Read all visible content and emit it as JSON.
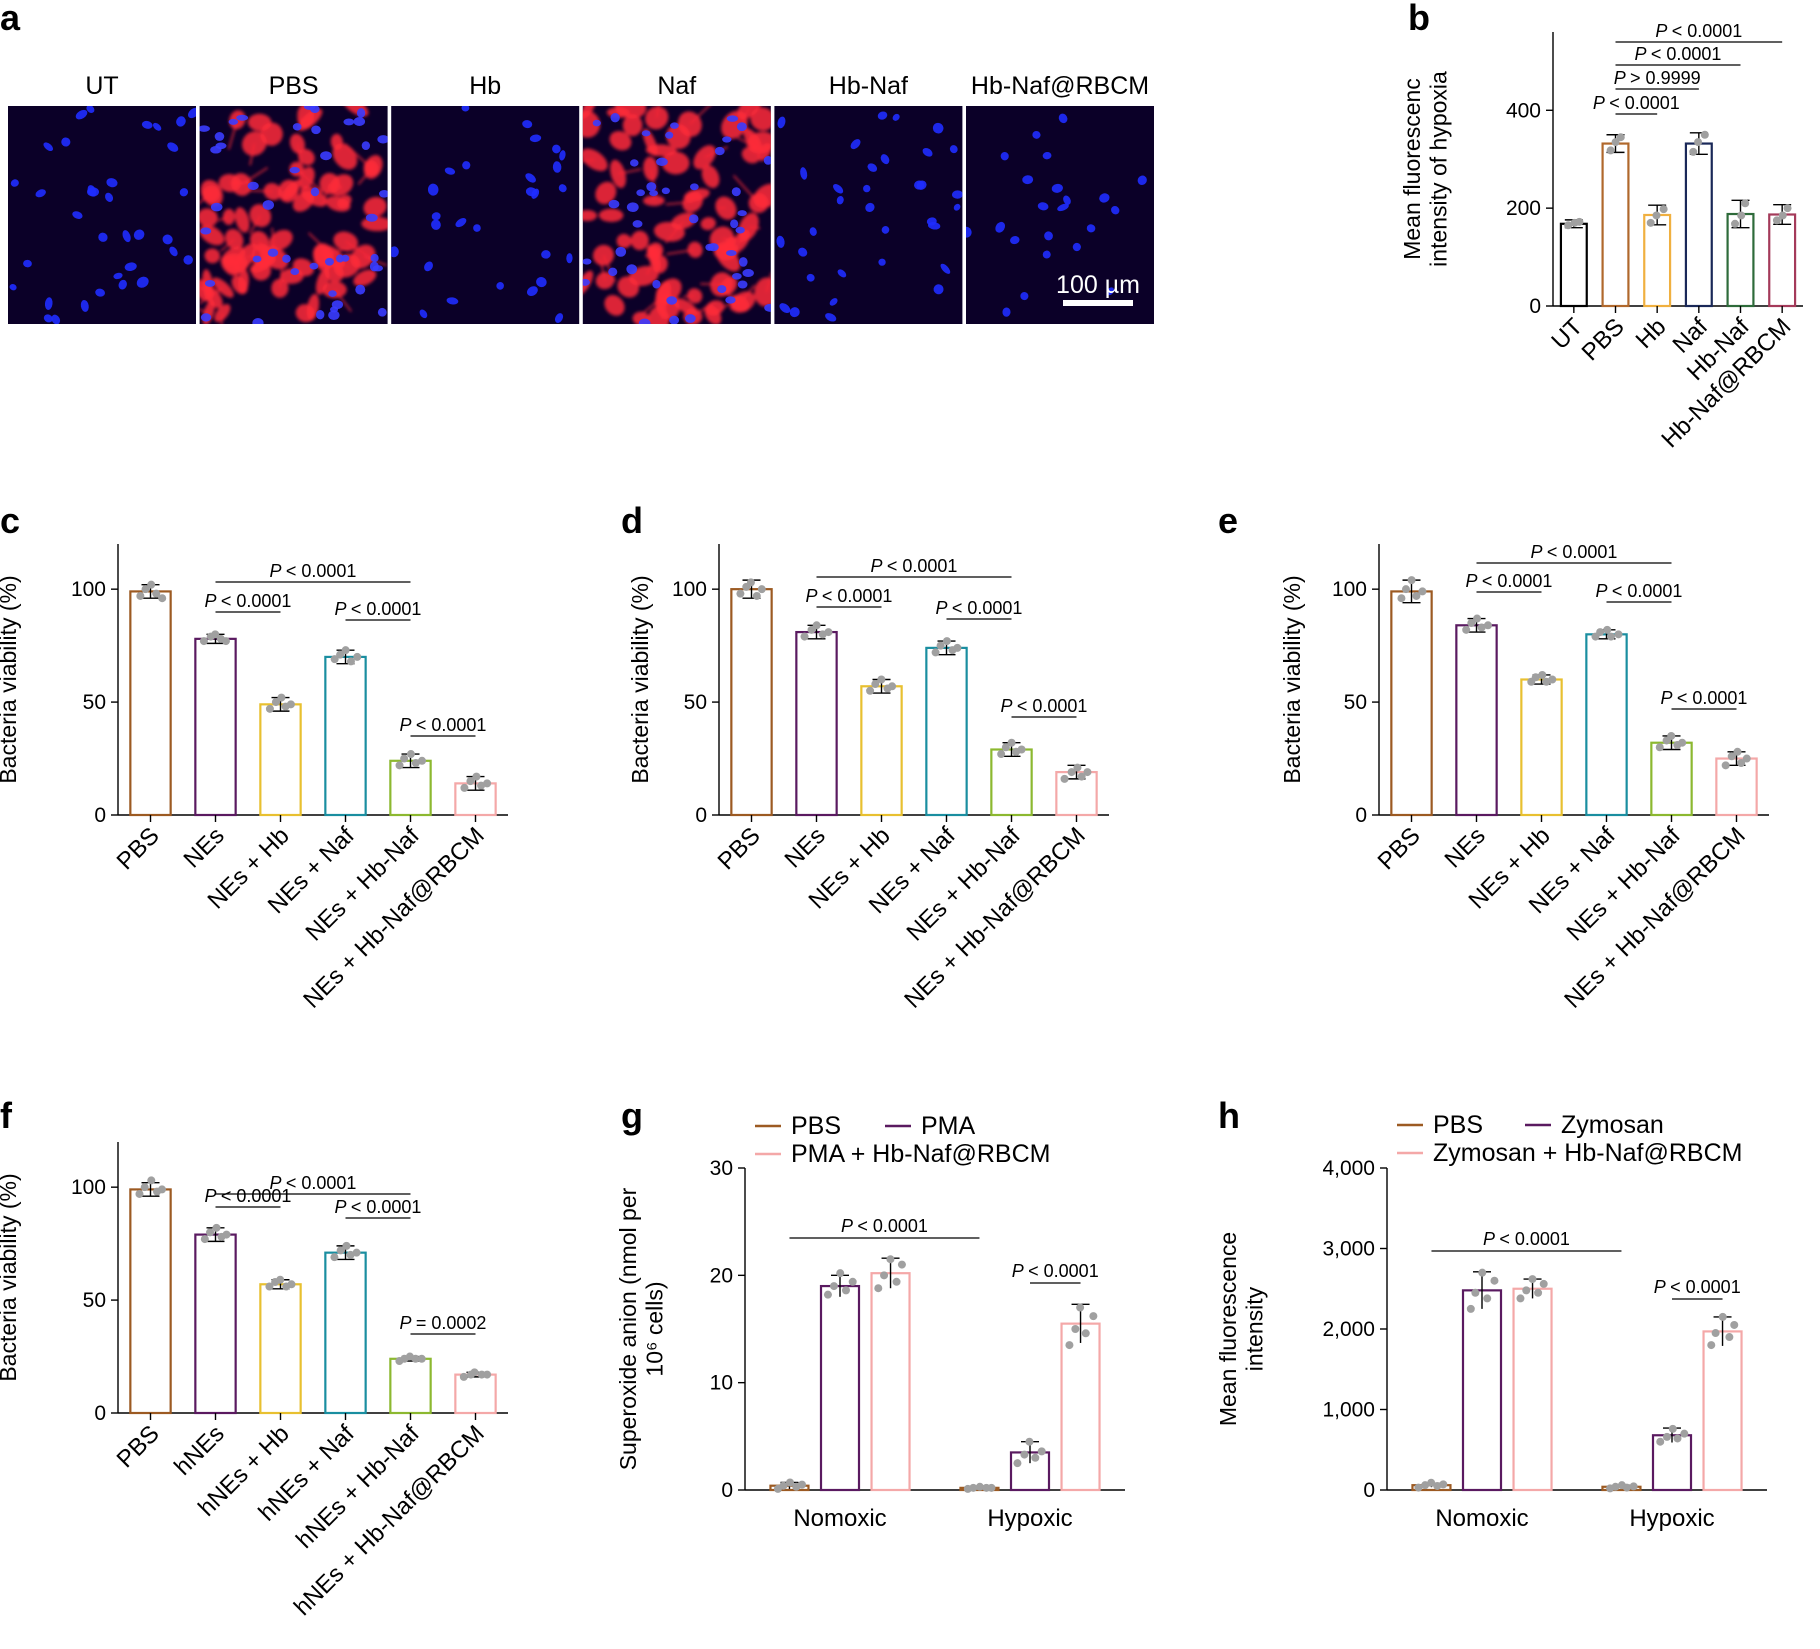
{
  "panel_labels": [
    "a",
    "b",
    "c",
    "d",
    "e",
    "f",
    "g",
    "h"
  ],
  "micrographs": {
    "labels": [
      "UT",
      "PBS",
      "Hb",
      "Naf",
      "Hb-Naf",
      "Hb-Naf@RBCM"
    ],
    "red_signal": [
      false,
      true,
      false,
      true,
      false,
      false
    ],
    "scale_bar": "100 µm",
    "colors": {
      "background": "#0b0028",
      "nuclei": "#1f2cff",
      "hypoxia": "#ff2a3a"
    }
  },
  "chart_data": [
    {
      "id": "b",
      "type": "bar",
      "categories": [
        "UT",
        "PBS",
        "Hb",
        "Naf",
        "Hb-Naf",
        "Hb-Naf@RBCM"
      ],
      "values": [
        168,
        332,
        186,
        332,
        188,
        187
      ],
      "errors": [
        8,
        18,
        20,
        22,
        28,
        20
      ],
      "points": [
        [
          165,
          170,
          172
        ],
        [
          318,
          335,
          345
        ],
        [
          170,
          185,
          198
        ],
        [
          315,
          335,
          350
        ],
        [
          168,
          185,
          210
        ],
        [
          175,
          185,
          200
        ]
      ],
      "colors": [
        "#000000",
        "#b0682c",
        "#f0b040",
        "#1a2858",
        "#2e6b3a",
        "#a43a5a"
      ],
      "ylabel": "Mean fluorescenc intensity of hypoxia",
      "ylim": [
        0,
        560
      ],
      "yticks": [
        0,
        200,
        400
      ],
      "stats": [
        {
          "from": 1,
          "to": 2,
          "text": "< 0.0001"
        },
        {
          "from": 1,
          "to": 3,
          "text": "> 0.9999"
        },
        {
          "from": 1,
          "to": 4,
          "text": "< 0.0001"
        },
        {
          "from": 1,
          "to": 5,
          "text": "< 0.0001"
        }
      ]
    },
    {
      "id": "c",
      "type": "bar",
      "categories": [
        "PBS",
        "NEs",
        "NEs + Hb",
        "NEs + Naf",
        "NEs + Hb-Naf",
        "NEs + Hb-Naf@RBCM"
      ],
      "values": [
        99,
        78,
        49,
        70,
        24,
        14
      ],
      "errors": [
        3,
        2,
        3,
        3,
        3,
        3
      ],
      "points": [
        [
          97,
          100,
          102,
          98,
          96
        ],
        [
          77,
          79,
          80,
          78,
          77
        ],
        [
          47,
          50,
          52,
          48,
          49
        ],
        [
          69,
          71,
          73,
          68,
          70
        ],
        [
          22,
          25,
          27,
          23,
          24
        ],
        [
          12,
          15,
          17,
          13,
          14
        ]
      ],
      "colors": [
        "#9c5a22",
        "#5a1a60",
        "#e8c030",
        "#1a8ea0",
        "#8cb830",
        "#f4a8a8"
      ],
      "ylabel": "Bacteria viability (%)",
      "ylim": [
        0,
        120
      ],
      "yticks": [
        0,
        50,
        100
      ],
      "stats": [
        {
          "from": 1,
          "to": 2,
          "text": "< 0.0001"
        },
        {
          "from": 1,
          "to": 4,
          "text": "< 0.0001"
        },
        {
          "from": 3,
          "to": 4,
          "text": "< 0.0001"
        },
        {
          "from": 4,
          "to": 5,
          "text": "< 0.0001"
        }
      ]
    },
    {
      "id": "d",
      "type": "bar",
      "categories": [
        "PBS",
        "NEs",
        "NEs + Hb",
        "NEs + Naf",
        "NEs + Hb-Naf",
        "NEs + Hb-Naf@RBCM"
      ],
      "values": [
        100,
        81,
        57,
        74,
        29,
        19
      ],
      "errors": [
        4,
        3,
        3,
        3,
        3,
        3
      ],
      "points": [
        [
          98,
          101,
          103,
          97,
          100
        ],
        [
          79,
          82,
          84,
          80,
          81
        ],
        [
          55,
          58,
          60,
          56,
          57
        ],
        [
          72,
          75,
          77,
          73,
          74
        ],
        [
          27,
          30,
          32,
          28,
          29
        ],
        [
          16,
          19,
          21,
          17,
          19
        ]
      ],
      "colors": [
        "#9c5a22",
        "#5a1a60",
        "#e8c030",
        "#1a8ea0",
        "#8cb830",
        "#f4a8a8"
      ],
      "ylabel": "Bacteria viability (%)",
      "ylim": [
        0,
        120
      ],
      "yticks": [
        0,
        50,
        100
      ],
      "stats": [
        {
          "from": 1,
          "to": 2,
          "text": "< 0.0001"
        },
        {
          "from": 1,
          "to": 4,
          "text": "< 0.0001"
        },
        {
          "from": 3,
          "to": 4,
          "text": "< 0.0001"
        },
        {
          "from": 4,
          "to": 5,
          "text": "< 0.0001"
        }
      ]
    },
    {
      "id": "e",
      "type": "bar",
      "categories": [
        "PBS",
        "NEs",
        "NEs + Hb",
        "NEs + Naf",
        "NEs + Hb-Naf",
        "NEs + Hb-Naf@RBCM"
      ],
      "values": [
        99,
        84,
        60,
        80,
        32,
        25
      ],
      "errors": [
        5,
        3,
        2,
        2,
        3,
        3
      ],
      "points": [
        [
          96,
          100,
          104,
          97,
          99
        ],
        [
          82,
          85,
          87,
          83,
          84
        ],
        [
          59,
          61,
          62,
          59,
          60
        ],
        [
          79,
          81,
          82,
          79,
          80
        ],
        [
          30,
          33,
          35,
          31,
          32
        ],
        [
          22,
          26,
          28,
          23,
          25
        ]
      ],
      "colors": [
        "#9c5a22",
        "#5a1a60",
        "#e8c030",
        "#1a8ea0",
        "#8cb830",
        "#f4a8a8"
      ],
      "ylabel": "Bacteria viability (%)",
      "ylim": [
        0,
        120
      ],
      "yticks": [
        0,
        50,
        100
      ],
      "stats": [
        {
          "from": 1,
          "to": 2,
          "text": "< 0.0001"
        },
        {
          "from": 1,
          "to": 4,
          "text": "< 0.0001"
        },
        {
          "from": 3,
          "to": 4,
          "text": "< 0.0001"
        },
        {
          "from": 4,
          "to": 5,
          "text": "< 0.0001"
        }
      ]
    },
    {
      "id": "f",
      "type": "bar",
      "categories": [
        "PBS",
        "hNEs",
        "hNEs + Hb",
        "hNEs + Naf",
        "hNEs + Hb-Naf",
        "hNEs + Hb-Naf@RBCM"
      ],
      "values": [
        99,
        79,
        57,
        71,
        24,
        17
      ],
      "errors": [
        3,
        3,
        2,
        3,
        1,
        1
      ],
      "points": [
        [
          97,
          100,
          103,
          98,
          99
        ],
        [
          77,
          80,
          82,
          78,
          79
        ],
        [
          56,
          58,
          59,
          56,
          57
        ],
        [
          69,
          72,
          74,
          70,
          71
        ],
        [
          23,
          24,
          25,
          24,
          24
        ],
        [
          16,
          17,
          18,
          17,
          17
        ]
      ],
      "colors": [
        "#9c5a22",
        "#5a1a60",
        "#e8c030",
        "#1a8ea0",
        "#8cb830",
        "#f4a8a8"
      ],
      "ylabel": "Bacteria viability (%)",
      "ylim": [
        0,
        120
      ],
      "yticks": [
        0,
        50,
        100
      ],
      "stats": [
        {
          "from": 1,
          "to": 2,
          "text": "< 0.0001"
        },
        {
          "from": 1,
          "to": 4,
          "text": "< 0.0001"
        },
        {
          "from": 3,
          "to": 4,
          "text": "< 0.0001"
        },
        {
          "from": 4,
          "to": 5,
          "text": "= 0.0002"
        }
      ]
    },
    {
      "id": "g",
      "type": "bar",
      "categories": [
        "Nomoxic",
        "Hypoxic"
      ],
      "series": [
        {
          "name": "PBS",
          "color": "#9c5a22",
          "values": [
            0.4,
            0.2
          ],
          "errors": [
            0.3,
            0.1
          ],
          "points": [
            [
              0.1,
              0.4,
              0.7,
              0.3,
              0.5
            ],
            [
              0.1,
              0.2,
              0.3,
              0.2,
              0.2
            ]
          ]
        },
        {
          "name": "PMA",
          "color": "#5a1a60",
          "values": [
            19.0,
            3.5
          ],
          "errors": [
            1.0,
            1.0
          ],
          "points": [
            [
              18.2,
              19.0,
              20.2,
              18.6,
              19.4
            ],
            [
              2.5,
              3.3,
              4.5,
              3.0,
              3.6
            ]
          ]
        },
        {
          "name": "PMA + Hb-Naf@RBCM",
          "color": "#f4a8a8",
          "values": [
            20.2,
            15.5
          ],
          "errors": [
            1.4,
            1.8
          ],
          "points": [
            [
              18.8,
              20.0,
              21.5,
              19.4,
              21.0
            ],
            [
              13.5,
              15.0,
              17.0,
              14.6,
              16.2
            ]
          ]
        }
      ],
      "ylabel": "Superoxide anion (nmol per 10⁶ cells)",
      "ylim": [
        0,
        30
      ],
      "yticks": [
        0,
        10,
        20,
        30
      ],
      "stats": [
        {
          "from": 0,
          "to": 3,
          "text": "< 0.0001"
        },
        {
          "from": 4,
          "to": 5,
          "text": "< 0.0001"
        }
      ]
    },
    {
      "id": "h",
      "type": "bar",
      "categories": [
        "Nomoxic",
        "Hypoxic"
      ],
      "series": [
        {
          "name": "PBS",
          "color": "#9c5a22",
          "values": [
            60,
            40
          ],
          "errors": [
            25,
            20
          ],
          "points": [
            [
              30,
              60,
              90,
              50,
              70
            ],
            [
              20,
              40,
              60,
              30,
              45
            ]
          ]
        },
        {
          "name": "Zymosan",
          "color": "#5a1a60",
          "values": [
            2480,
            680
          ],
          "errors": [
            230,
            90
          ],
          "points": [
            [
              2250,
              2450,
              2700,
              2380,
              2600
            ],
            [
              600,
              660,
              760,
              640,
              700
            ]
          ]
        },
        {
          "name": "Zymosan + Hb-Naf@RBCM",
          "color": "#f4a8a8",
          "values": [
            2500,
            1970
          ],
          "errors": [
            120,
            180
          ],
          "points": [
            [
              2380,
              2480,
              2620,
              2450,
              2560
            ],
            [
              1800,
              1950,
              2150,
              1900,
              2050
            ]
          ]
        }
      ],
      "ylabel": "Mean fluorescence intensity",
      "ylim": [
        0,
        4000
      ],
      "yticks": [
        0,
        1000,
        2000,
        3000,
        4000
      ],
      "ytick_labels": [
        "0",
        "1,000",
        "2,000",
        "3,000",
        "4,000"
      ],
      "stats": [
        {
          "from": 0,
          "to": 3,
          "text": "< 0.0001"
        },
        {
          "from": 4,
          "to": 5,
          "text": "< 0.0001"
        }
      ]
    }
  ]
}
